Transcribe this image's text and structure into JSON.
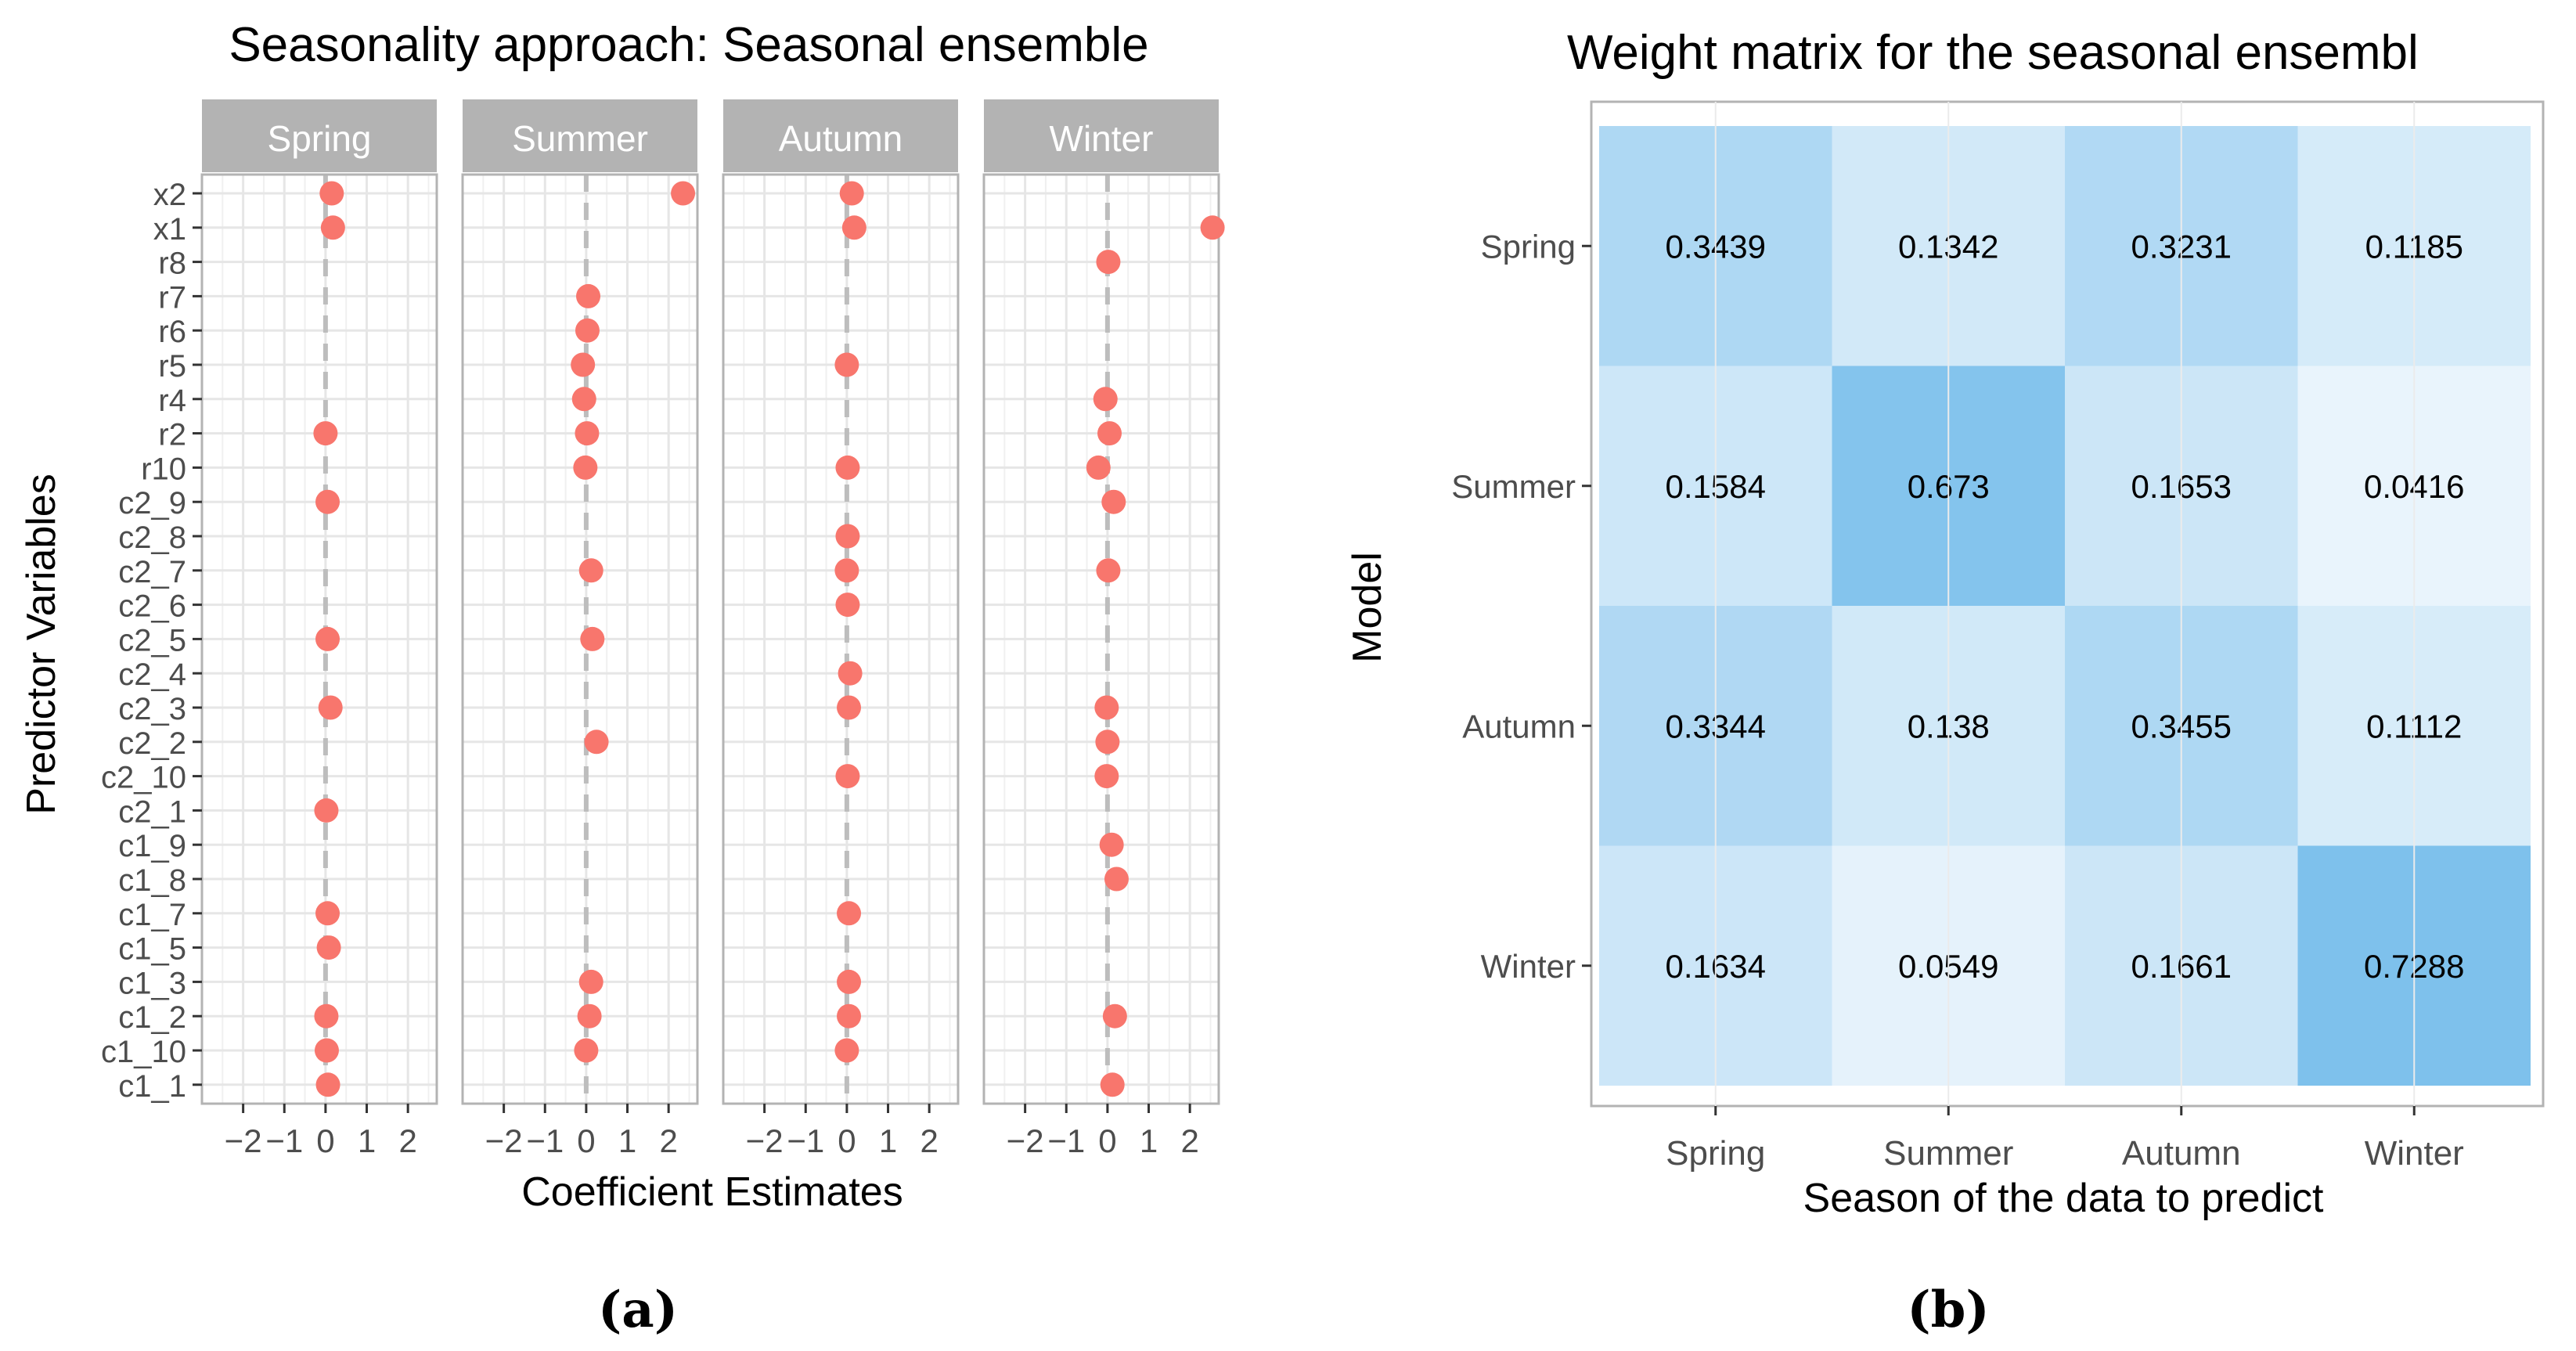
{
  "colors": {
    "point": "#F8766D",
    "strip_bg": "#B3B3B3",
    "strip_text": "#FFFFFF",
    "grid": "#E6E6E6",
    "panel_border": "#B3B3B3",
    "zero_line": "#BDBDBD",
    "axis_text": "#4D4D4D",
    "heat_low": "#FFFFFF",
    "heat_high": "#7DC0EC"
  },
  "chart_data": [
    {
      "type": "scatter",
      "title": "Seasonality approach: Seasonal ensemble",
      "xlabel": "Coefficient Estimates",
      "ylabel": "Predictor Variables",
      "caption": "(a)",
      "xlim": [
        -3,
        2.7
      ],
      "xticks": [
        -2,
        -1,
        0,
        1,
        2
      ],
      "xtick_labels": [
        "−2",
        "−1",
        "0",
        "1",
        "2"
      ],
      "zero_line": true,
      "facets": [
        "Spring",
        "Summer",
        "Autumn",
        "Winter"
      ],
      "categories_top_to_bottom": [
        "x2",
        "x1",
        "r8",
        "r7",
        "r6",
        "r5",
        "r4",
        "r2",
        "r10",
        "c2_9",
        "c2_8",
        "c2_7",
        "c2_6",
        "c2_5",
        "c2_4",
        "c2_3",
        "c2_2",
        "c2_10",
        "c2_1",
        "c1_9",
        "c1_8",
        "c1_7",
        "c1_5",
        "c1_3",
        "c1_2",
        "c1_10",
        "c1_1"
      ],
      "series": [
        {
          "facet": "Spring",
          "points": [
            [
              "x2",
              0.15
            ],
            [
              "x1",
              0.18
            ],
            [
              "r2",
              0.0
            ],
            [
              "c2_9",
              0.05
            ],
            [
              "c2_5",
              0.05
            ],
            [
              "c2_3",
              0.12
            ],
            [
              "c2_1",
              0.02
            ],
            [
              "c1_7",
              0.05
            ],
            [
              "c1_5",
              0.08
            ],
            [
              "c1_2",
              0.02
            ],
            [
              "c1_10",
              0.03
            ],
            [
              "c1_1",
              0.06
            ]
          ]
        },
        {
          "facet": "Summer",
          "points": [
            [
              "x2",
              2.35
            ],
            [
              "r7",
              0.05
            ],
            [
              "r6",
              0.03
            ],
            [
              "r5",
              -0.08
            ],
            [
              "r4",
              -0.05
            ],
            [
              "r2",
              0.02
            ],
            [
              "r10",
              -0.02
            ],
            [
              "c2_7",
              0.12
            ],
            [
              "c2_5",
              0.15
            ],
            [
              "c2_2",
              0.25
            ],
            [
              "c1_3",
              0.12
            ],
            [
              "c1_2",
              0.08
            ],
            [
              "c1_10",
              0.0
            ]
          ]
        },
        {
          "facet": "Autumn",
          "points": [
            [
              "x2",
              0.12
            ],
            [
              "x1",
              0.18
            ],
            [
              "r5",
              0.0
            ],
            [
              "r10",
              0.02
            ],
            [
              "c2_8",
              0.02
            ],
            [
              "c2_7",
              0.0
            ],
            [
              "c2_6",
              0.02
            ],
            [
              "c2_4",
              0.08
            ],
            [
              "c2_3",
              0.05
            ],
            [
              "c2_10",
              0.02
            ],
            [
              "c1_7",
              0.05
            ],
            [
              "c1_3",
              0.05
            ],
            [
              "c1_2",
              0.05
            ],
            [
              "c1_10",
              0.0
            ]
          ]
        },
        {
          "facet": "Winter",
          "points": [
            [
              "x1",
              2.55
            ],
            [
              "r8",
              0.02
            ],
            [
              "r4",
              -0.05
            ],
            [
              "r2",
              0.05
            ],
            [
              "r10",
              -0.22
            ],
            [
              "c2_9",
              0.15
            ],
            [
              "c2_7",
              0.02
            ],
            [
              "c2_3",
              -0.02
            ],
            [
              "c2_2",
              0.0
            ],
            [
              "c2_10",
              -0.02
            ],
            [
              "c1_9",
              0.1
            ],
            [
              "c1_8",
              0.22
            ],
            [
              "c1_2",
              0.18
            ],
            [
              "c1_1",
              0.12
            ]
          ]
        }
      ]
    },
    {
      "type": "heatmap",
      "title": "Weight matrix for the seasonal ensembl",
      "xlabel": "Season of the data to predict",
      "ylabel": "Model",
      "caption": "(b)",
      "x_categories": [
        "Spring",
        "Summer",
        "Autumn",
        "Winter"
      ],
      "y_categories": [
        "Spring",
        "Summer",
        "Autumn",
        "Winter"
      ],
      "values": [
        [
          "0.3439",
          "0.1342",
          "0.3231",
          "0.1185"
        ],
        [
          "0.1584",
          "0.673",
          "0.1653",
          "0.0416"
        ],
        [
          "0.3344",
          "0.138",
          "0.3455",
          "0.1112"
        ],
        [
          "0.1634",
          "0.0549",
          "0.1661",
          "0.7288"
        ]
      ]
    }
  ]
}
